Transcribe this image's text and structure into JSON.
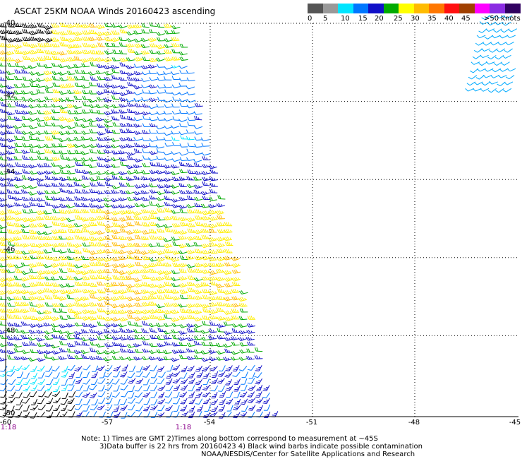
{
  "title": "ASCAT 25KM NOAA Winds 20160423 ascending",
  "legend": {
    "colors": [
      "#555555",
      "#999999",
      "#00e5ff",
      "#0077ff",
      "#1010c8",
      "#00aa00",
      "#ffff00",
      "#ffbb00",
      "#ff7700",
      "#ff1010",
      "#a04000",
      "#ff00ff",
      "#8a2be2",
      "#300060"
    ],
    "ticks": [
      "0",
      "5",
      "10",
      "15",
      "20",
      "25",
      "30",
      "35",
      "40",
      "45",
      ">50 knots"
    ],
    "unit": "knots"
  },
  "axes": {
    "x_labels": [
      "-60",
      "-57",
      "-54",
      "-51",
      "-48",
      "-45"
    ],
    "y_labels": [
      "-40",
      "-42",
      "-44",
      "-46",
      "-48",
      "-50"
    ]
  },
  "time_labels": [
    "1:18",
    "1:18"
  ],
  "notes": {
    "line1": "Note: 1) Times are GMT 2)Times along bottom correspond to measurement at ~45S",
    "line2": "3)Data buffer is 22 hrs from 20160423 4) Black wind barbs indicate possible contamination",
    "line3": "NOAA/NESDIS/Center for Satellite Applications and Research"
  },
  "wind_swath": {
    "lon_range": [
      -60,
      -45
    ],
    "lat_range": [
      -50.2,
      -39.7
    ],
    "speed_range_knots": [
      5,
      35
    ],
    "main_swath_east_edge_lon": {
      "at_lat_-40": -54.8,
      "at_lat_-50": -52.0
    }
  }
}
